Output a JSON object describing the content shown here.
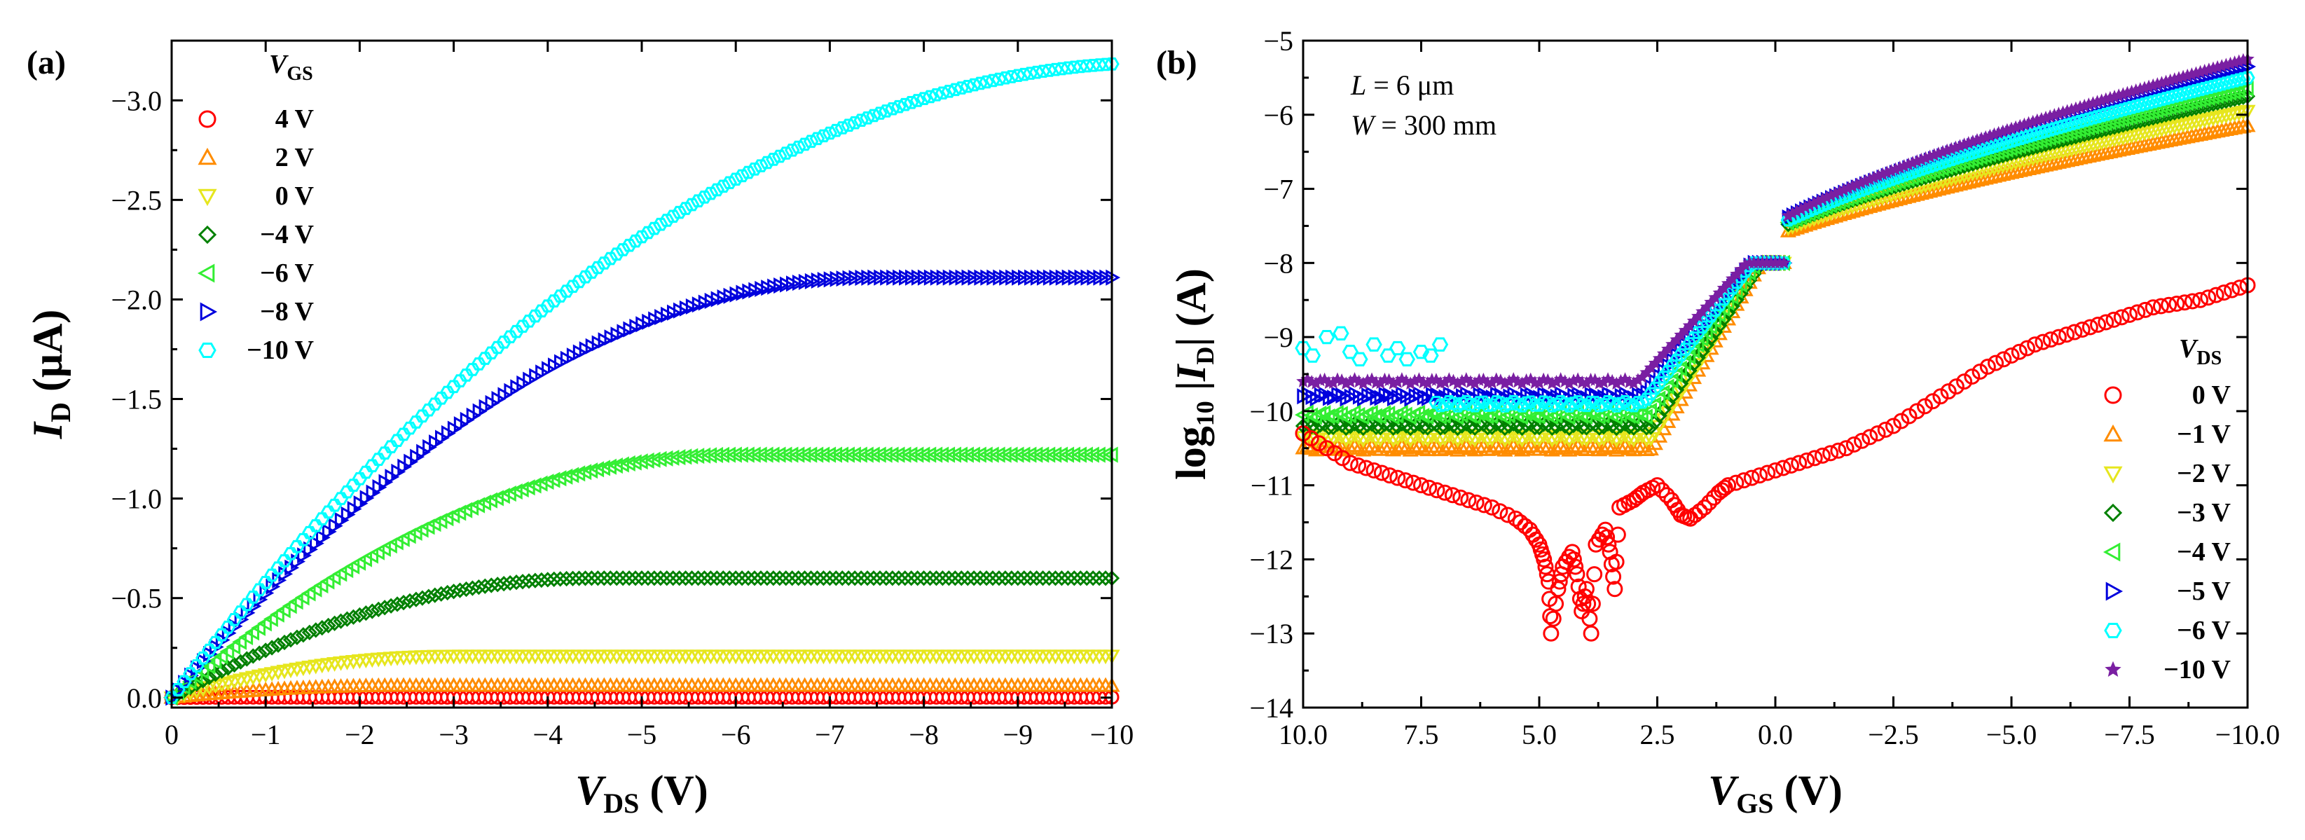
{
  "chart_data": [
    {
      "type": "scatter",
      "panel_label": "(a)",
      "xlabel": {
        "main": "V",
        "sub": "DS",
        "unit": " (V)"
      },
      "ylabel": {
        "main": "I",
        "sub": "D",
        "unit": " (μA)"
      },
      "xlim": [
        0,
        -10
      ],
      "ylim": [
        0.05,
        -3.3
      ],
      "xticks": [
        0,
        -1,
        -2,
        -3,
        -4,
        -5,
        -6,
        -7,
        -8,
        -9,
        -10
      ],
      "xtick_labels": [
        "0",
        "−1",
        "−2",
        "−3",
        "−4",
        "−5",
        "−6",
        "−7",
        "−8",
        "−9",
        "−10"
      ],
      "yticks": [
        0,
        -0.5,
        -1.0,
        -1.5,
        -2.0,
        -2.5,
        -3.0
      ],
      "ytick_labels": [
        "0.0",
        "−0.5",
        "−1.0",
        "−1.5",
        "−2.0",
        "−2.5",
        "−3.0"
      ],
      "legend": {
        "title_main": "V",
        "title_sub": "GS",
        "position": "top-left"
      },
      "series": [
        {
          "name": "4 V",
          "color": "#ff0000",
          "marker": "circle",
          "model": {
            "isat": -0.002,
            "vsat": 1.0
          }
        },
        {
          "name": "2 V",
          "color": "#ff8c00",
          "marker": "triangle-up",
          "model": {
            "isat": -0.06,
            "vsat": 2.5
          }
        },
        {
          "name": "0 V",
          "color": "#e6e61e",
          "marker": "triangle-down",
          "model": {
            "isat": -0.21,
            "vsat": 3.0
          }
        },
        {
          "name": "−4 V",
          "color": "#008000",
          "marker": "diamond",
          "model": {
            "isat": -0.6,
            "vsat": 4.5
          }
        },
        {
          "name": "−6 V",
          "color": "#33ee33",
          "marker": "triangle-left",
          "model": {
            "isat": -1.22,
            "vsat": 6.0
          }
        },
        {
          "name": "−8 V",
          "color": "#0000dd",
          "marker": "triangle-right",
          "model": {
            "isat": -2.11,
            "vsat": 7.5
          }
        },
        {
          "name": "−10 V",
          "color": "#00ffff",
          "marker": "hexagon",
          "model": {
            "isat": -3.19,
            "vsat": 10.5
          }
        }
      ]
    },
    {
      "type": "scatter",
      "panel_label": "(b)",
      "annotations": [
        {
          "var": "L",
          "text": " = 6 μm"
        },
        {
          "var": "W",
          "text": " = 300 mm"
        }
      ],
      "xlabel": {
        "main": "V",
        "sub": "GS",
        "unit": " (V)"
      },
      "ylabel": {
        "prefix": "log",
        "prefix_sub": "10",
        "mid": " |",
        "main": "I",
        "sub": "D",
        "unit": "| (A)"
      },
      "xlim": [
        10,
        -10
      ],
      "ylim": [
        -14,
        -5
      ],
      "xticks": [
        10,
        7.5,
        5,
        2.5,
        0,
        -2.5,
        -5,
        -7.5,
        -10
      ],
      "xtick_labels": [
        "10.0",
        "7.5",
        "5.0",
        "2.5",
        "0.0",
        "−2.5",
        "−5.0",
        "−7.5",
        "−10.0"
      ],
      "yticks": [
        -14,
        -13,
        -12,
        -11,
        -10,
        -9,
        -8,
        -7,
        -6,
        -5
      ],
      "ytick_labels": [
        "−14",
        "−13",
        "−12",
        "−11",
        "−10",
        "−9",
        "−8",
        "−7",
        "−6",
        "−5"
      ],
      "legend": {
        "title_main": "V",
        "title_sub": "DS",
        "position": "bottom-right"
      },
      "series": [
        {
          "name": "0 V",
          "color": "#ff0000",
          "marker": "circle"
        },
        {
          "name": "−1 V",
          "color": "#ff8c00",
          "marker": "triangle-up",
          "model": {
            "off": -10.5,
            "on_end": -6.15,
            "vth": 2.6
          }
        },
        {
          "name": "−2 V",
          "color": "#e6e61e",
          "marker": "triangle-down",
          "model": {
            "off": -10.35,
            "on_end": -5.95,
            "vth": 2.6
          }
        },
        {
          "name": "−3 V",
          "color": "#008000",
          "marker": "diamond",
          "model": {
            "off": -10.2,
            "on_end": -5.75,
            "vth": 2.6
          }
        },
        {
          "name": "−4 V",
          "color": "#33ee33",
          "marker": "triangle-left",
          "model": {
            "off": -10.05,
            "on_end": -5.65,
            "vth": 2.7
          }
        },
        {
          "name": "−5 V",
          "color": "#0000dd",
          "marker": "triangle-right",
          "model": {
            "off": -9.8,
            "on_end": -5.35,
            "vth": 2.8
          }
        },
        {
          "name": "−6 V",
          "color": "#00ffff",
          "marker": "hexagon",
          "model": {
            "off": -9.9,
            "on_end": -5.5,
            "vth": 2.8
          }
        },
        {
          "name": "−10 V",
          "color": "#7a1fa2",
          "marker": "star",
          "model": {
            "off": -9.6,
            "on_end": -5.25,
            "vth": 2.9
          }
        }
      ],
      "series0_points": [
        [
          10,
          -10.3
        ],
        [
          9.5,
          -10.5
        ],
        [
          9.0,
          -10.7
        ],
        [
          8.5,
          -10.8
        ],
        [
          8.0,
          -10.9
        ],
        [
          7.5,
          -11.0
        ],
        [
          7.0,
          -11.1
        ],
        [
          6.5,
          -11.2
        ],
        [
          6.0,
          -11.3
        ],
        [
          5.5,
          -11.45
        ],
        [
          5.2,
          -11.6
        ],
        [
          5.0,
          -11.8
        ],
        [
          4.9,
          -12.0
        ],
        [
          4.8,
          -12.3
        ],
        [
          4.75,
          -13.0
        ],
        [
          4.6,
          -12.4
        ],
        [
          4.5,
          -12.1
        ],
        [
          4.3,
          -11.9
        ],
        [
          4.2,
          -12.2
        ],
        [
          4.1,
          -12.7
        ],
        [
          4.0,
          -12.4
        ],
        [
          3.9,
          -13.0
        ],
        [
          3.8,
          -11.8
        ],
        [
          3.6,
          -11.6
        ],
        [
          3.5,
          -11.9
        ],
        [
          3.4,
          -12.4
        ],
        [
          3.3,
          -11.3
        ],
        [
          3.0,
          -11.2
        ],
        [
          2.8,
          -11.1
        ],
        [
          2.5,
          -11.0
        ],
        [
          2.2,
          -11.2
        ],
        [
          2.0,
          -11.4
        ],
        [
          1.8,
          -11.45
        ],
        [
          1.5,
          -11.3
        ],
        [
          1.2,
          -11.1
        ],
        [
          1.0,
          -11.0
        ],
        [
          0.5,
          -10.9
        ],
        [
          0.0,
          -10.8
        ],
        [
          -0.5,
          -10.7
        ],
        [
          -1.0,
          -10.6
        ],
        [
          -1.5,
          -10.5
        ],
        [
          -2.0,
          -10.35
        ],
        [
          -2.5,
          -10.2
        ],
        [
          -3.0,
          -10.0
        ],
        [
          -3.5,
          -9.8
        ],
        [
          -4.0,
          -9.6
        ],
        [
          -4.5,
          -9.4
        ],
        [
          -5.0,
          -9.25
        ],
        [
          -5.5,
          -9.1
        ],
        [
          -6.0,
          -9.0
        ],
        [
          -6.5,
          -8.9
        ],
        [
          -7.0,
          -8.8
        ],
        [
          -7.5,
          -8.7
        ],
        [
          -8.0,
          -8.6
        ],
        [
          -8.5,
          -8.55
        ],
        [
          -9.0,
          -8.5
        ],
        [
          -9.5,
          -8.4
        ],
        [
          -10.0,
          -8.3
        ]
      ],
      "cyan_extra_points": [
        [
          10.0,
          -9.15
        ],
        [
          9.8,
          -9.25
        ],
        [
          9.5,
          -9.0
        ],
        [
          9.2,
          -8.95
        ],
        [
          9.0,
          -9.2
        ],
        [
          8.8,
          -9.3
        ],
        [
          8.5,
          -9.1
        ],
        [
          8.2,
          -9.25
        ],
        [
          8.0,
          -9.15
        ],
        [
          7.8,
          -9.3
        ],
        [
          7.5,
          -9.2
        ],
        [
          7.3,
          -9.25
        ],
        [
          7.1,
          -9.1
        ]
      ]
    }
  ]
}
